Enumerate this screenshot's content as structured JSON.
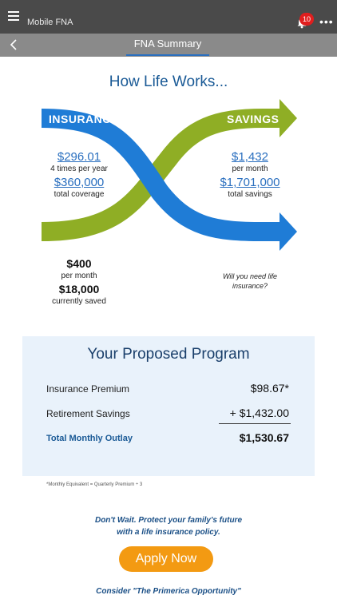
{
  "app": {
    "title": "Mobile FNA",
    "notification_count": "10"
  },
  "nav": {
    "tab": "FNA Summary"
  },
  "heading": "How Life Works...",
  "diagram": {
    "insurance": {
      "label": "INSURANCE",
      "premium": "$296.01",
      "premium_note": "4 times per year",
      "coverage": "$360,000",
      "coverage_note": "total coverage",
      "color": "#1f7cd6"
    },
    "savings": {
      "label": "SAVINGS",
      "monthly": "$1,432",
      "monthly_note": "per month",
      "total": "$1,701,000",
      "total_note": "total savings",
      "color": "#8fae25"
    },
    "current": {
      "monthly": "$400",
      "monthly_note": "per month",
      "saved": "$18,000",
      "saved_note": "currently saved"
    },
    "question": "Will you need life insurance?"
  },
  "program": {
    "title": "Your Proposed Program",
    "rows": [
      {
        "label": "Insurance Premium",
        "value": "$98.67*"
      },
      {
        "label": "Retirement Savings",
        "value": "+ $1,432.00"
      }
    ],
    "total": {
      "label": "Total Monthly Outlay",
      "value": "$1,530.67"
    }
  },
  "footnote": "*Monthly Equivalent = Quarterly Premium ÷ 3",
  "cta": {
    "line1": "Don't Wait. Protect your family's future",
    "line2": "with a life insurance policy.",
    "button": "Apply Now",
    "consider": "Consider \"The Primerica Opportunity\""
  }
}
